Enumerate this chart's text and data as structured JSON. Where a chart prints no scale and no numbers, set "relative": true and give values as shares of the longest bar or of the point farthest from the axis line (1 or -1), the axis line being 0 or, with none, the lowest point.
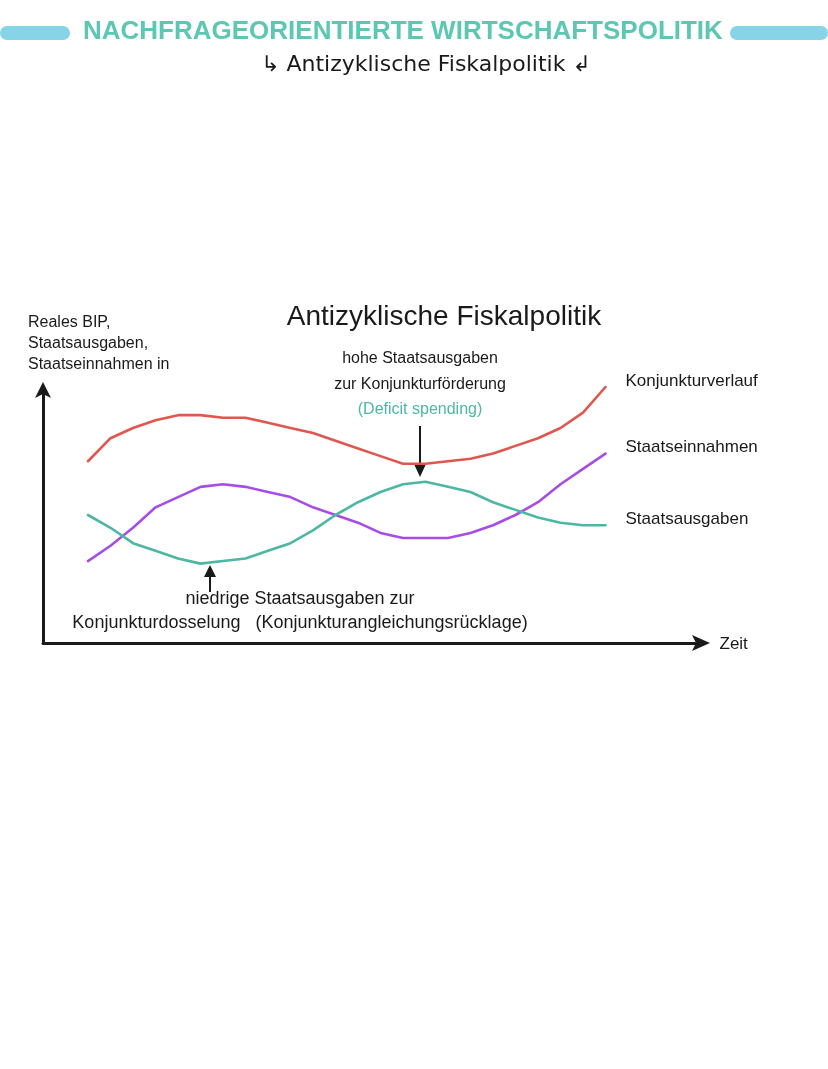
{
  "chart_data": {
    "type": "line",
    "title": "NACHFRAGEORIENTIERTE WIRTSCHAFTSPOLITIK",
    "subtitle": "↳ Antizyklische Fiskalpolitik ↲",
    "xlabel": "Zeit",
    "ylabel": "Reales BIP,\nStaatsausgaben,\nStaatseinnahmen in",
    "annotations": [
      "Antizyklische Fiskalpolitik",
      "hohe Staatsausgaben\nzur Konjunkturförderung",
      "(Deficit spending)",
      "niedrige Staatsausgaben zur\nKonjunkturdosselung   (Konjunkturangleichungsrücklage)"
    ],
    "relative": true,
    "categories": [
      null,
      null,
      null,
      null,
      null,
      null,
      null,
      null,
      null,
      null,
      null,
      null,
      null,
      null,
      null,
      null,
      null,
      null,
      null,
      null,
      null,
      null,
      null,
      null,
      null,
      null,
      null,
      null,
      null,
      null
    ],
    "series": [
      {
        "name": "Konjunkturverlauf",
        "color": "#e0574f",
        "values": [
          null,
          null,
          0.71,
          0.8,
          0.84,
          0.87,
          0.89,
          0.89,
          0.88,
          0.88,
          0.86,
          0.84,
          0.82,
          0.79,
          0.76,
          0.73,
          0.7,
          0.7,
          0.71,
          0.72,
          0.74,
          0.77,
          0.8,
          0.84,
          0.9,
          1,
          null,
          null,
          null,
          null
        ]
      },
      {
        "name": "Staatseinnahmen",
        "color": "#a64de6",
        "values": [
          null,
          null,
          0.32,
          0.38,
          0.45,
          0.53,
          0.57,
          0.61,
          0.62,
          0.61,
          0.59,
          0.57,
          0.53,
          0.5,
          0.47,
          0.43,
          0.41,
          0.41,
          0.41,
          0.43,
          0.46,
          0.5,
          0.55,
          0.62,
          0.68,
          0.74,
          null,
          null,
          null,
          null
        ]
      },
      {
        "name": "Staatsausgaben",
        "color": "#4cb8a4",
        "values": [
          null,
          null,
          0.5,
          0.45,
          0.39,
          0.36,
          0.33,
          0.31,
          0.32,
          0.33,
          0.36,
          0.39,
          0.44,
          0.5,
          0.55,
          0.59,
          0.62,
          0.63,
          0.61,
          0.59,
          0.55,
          0.52,
          0.49,
          0.47,
          0.46,
          0.46,
          null,
          null,
          null,
          null
        ]
      }
    ]
  }
}
